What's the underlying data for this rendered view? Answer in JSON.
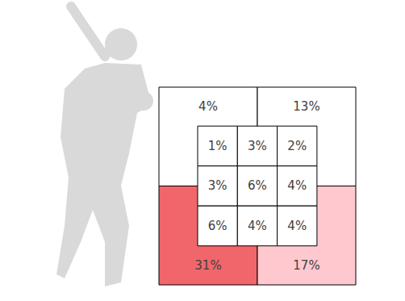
{
  "chart_data": {
    "type": "zone_heatmap",
    "data_labels": true,
    "outer": {
      "values": [
        [
          4,
          13
        ],
        [
          31,
          17
        ]
      ],
      "value_labels": [
        [
          "4%",
          "13%"
        ],
        [
          "31%",
          "17%"
        ]
      ],
      "colors": [
        [
          "#ffffff",
          "#ffffff"
        ],
        [
          "#f0666b",
          "#ffc8cf"
        ]
      ]
    },
    "inner": {
      "values": [
        [
          1,
          3,
          2
        ],
        [
          3,
          6,
          4
        ],
        [
          6,
          4,
          4
        ]
      ],
      "value_labels": [
        [
          "1%",
          "3%",
          "2%"
        ],
        [
          "3%",
          "6%",
          "4%"
        ],
        [
          "6%",
          "4%",
          "4%"
        ]
      ],
      "color": "#ffffff"
    }
  }
}
